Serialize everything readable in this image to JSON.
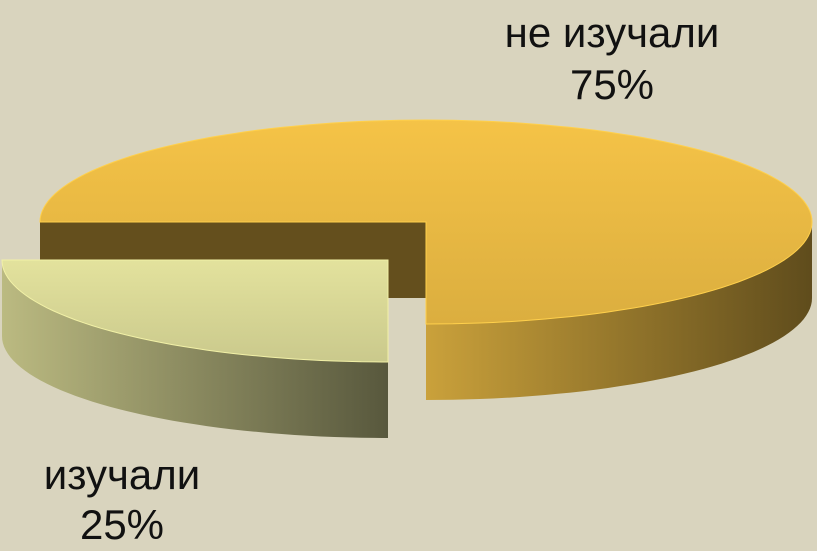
{
  "chart_data": {
    "type": "pie3d",
    "categories": [
      "не изучали",
      "изучали"
    ],
    "values": [
      75,
      25
    ],
    "value_labels": [
      "75%",
      "25%"
    ],
    "colors": [
      "#eebd45",
      "#dcdb98"
    ]
  }
}
